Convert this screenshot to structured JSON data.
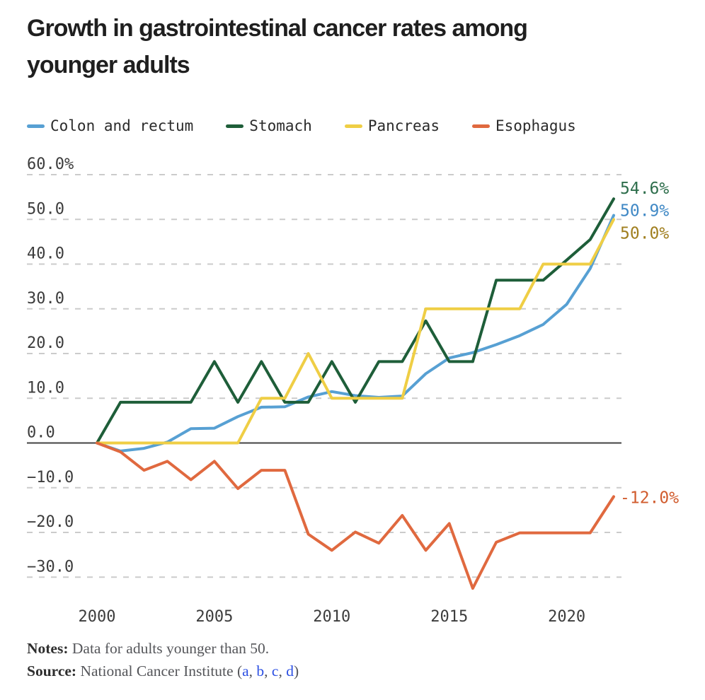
{
  "title": "Growth in gastrointestinal cancer rates among younger adults",
  "notes": {
    "label": "Notes:",
    "text": "Data for adults younger than 50."
  },
  "source": {
    "label": "Source:",
    "text": "National Cancer Institute",
    "paren_open": "(",
    "paren_close": ")",
    "links": [
      "a",
      "b",
      "c",
      "d"
    ],
    "separator": ", "
  },
  "chart_data": {
    "type": "line",
    "title": "Growth in gastrointestinal cancer rates among younger adults",
    "legend_position": "top",
    "grid": "dashed horizontal gridlines",
    "x": [
      2000,
      2001,
      2002,
      2003,
      2004,
      2005,
      2006,
      2007,
      2008,
      2009,
      2010,
      2011,
      2012,
      2013,
      2014,
      2015,
      2016,
      2017,
      2018,
      2019,
      2020,
      2021,
      2022
    ],
    "series": [
      {
        "name": "Colon and rectum",
        "color": "#57a0d3",
        "label_color": "#3f88c5",
        "end_label": "50.9%",
        "values": [
          0,
          -1.8,
          -1.2,
          0.2,
          3.2,
          3.3,
          5.9,
          8.0,
          8.1,
          10.3,
          11.5,
          10.6,
          10.2,
          10.5,
          15.5,
          19.0,
          20.2,
          22.0,
          24.0,
          26.5,
          31.0,
          39.0,
          50.9
        ]
      },
      {
        "name": "Stomach",
        "color": "#1e5e39",
        "label_color": "#2e6e4c",
        "end_label": "54.6%",
        "values": [
          0,
          9.1,
          9.1,
          9.1,
          9.1,
          18.2,
          9.1,
          18.2,
          9.1,
          9.1,
          18.2,
          9.1,
          18.2,
          18.2,
          27.3,
          18.2,
          18.2,
          36.4,
          36.4,
          36.4,
          40.9,
          45.5,
          54.6
        ]
      },
      {
        "name": "Pancreas",
        "color": "#efce45",
        "label_color": "#a07f1f",
        "end_label": "50.0%",
        "values": [
          0,
          0,
          0,
          0,
          0,
          0,
          0,
          10.0,
          10.0,
          20.0,
          10.0,
          10.0,
          10.0,
          10.0,
          30.0,
          30.0,
          30.0,
          30.0,
          30.0,
          40.0,
          40.0,
          40.0,
          50.0
        ]
      },
      {
        "name": "Esophagus",
        "color": "#e0693f",
        "label_color": "#d15c2e",
        "end_label": "-12.0%",
        "values": [
          0,
          -2.0,
          -6.1,
          -4.1,
          -8.2,
          -4.1,
          -10.2,
          -6.1,
          -6.1,
          -20.4,
          -24.0,
          -19.9,
          -22.4,
          -16.2,
          -24.0,
          -18.0,
          -32.5,
          -22.2,
          -20.1,
          -20.1,
          -20.1,
          -20.1,
          -12.0
        ]
      }
    ],
    "y_ticks": {
      "values": [
        60,
        50,
        40,
        30,
        20,
        10,
        0,
        -10,
        -20,
        -30
      ],
      "labels": [
        "60.0%",
        "50.0",
        "40.0",
        "30.0",
        "20.0",
        "10.0",
        "0.0",
        "−10.0",
        "−20.0",
        "−30.0"
      ]
    },
    "x_ticks": {
      "values": [
        2000,
        2005,
        2010,
        2015,
        2020
      ],
      "labels": [
        "2000",
        "2005",
        "2010",
        "2015",
        "2020"
      ]
    },
    "ylim": [
      -37,
      62
    ],
    "xlim": [
      2000,
      2022
    ]
  }
}
